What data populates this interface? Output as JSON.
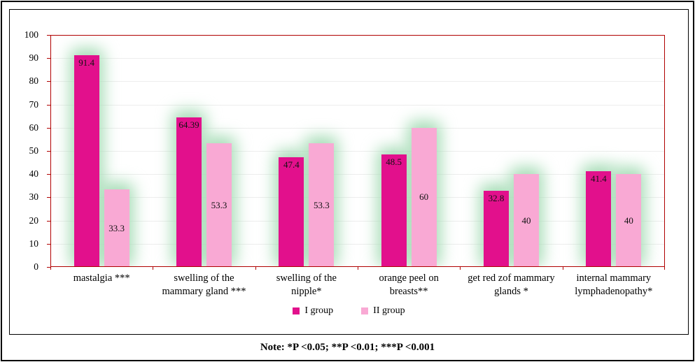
{
  "note": "Note: *P <0.05; **P <0.01; ***P <0.001",
  "chart_data": {
    "type": "bar",
    "title": "",
    "categories": [
      "mastalgia ***",
      "swelling of the mammary gland ***",
      "swelling of the nipple*",
      "orange peel on breasts**",
      "get red zof mammary glands *",
      "internal mammary lymphadenopathy*"
    ],
    "category_lines": [
      [
        "mastalgia ***"
      ],
      [
        "swelling of the",
        "mammary gland ***"
      ],
      [
        "swelling of the",
        "nipple*"
      ],
      [
        "orange peel on",
        "breasts**"
      ],
      [
        "get red zof mammary",
        "glands *"
      ],
      [
        "internal mammary",
        "lymphadenopathy*"
      ]
    ],
    "series": [
      {
        "name": "I group",
        "color": "#E2108C",
        "values": [
          91.4,
          64.39,
          47.4,
          48.5,
          32.8,
          41.4
        ],
        "value_labels": [
          "91.4",
          "64.39",
          "47.4",
          "48.5",
          "32.8",
          "41.4"
        ],
        "label_position": "top"
      },
      {
        "name": "II group",
        "color": "#F9A9D4",
        "values": [
          33.3,
          53.3,
          53.3,
          60,
          40,
          40
        ],
        "value_labels": [
          "33.3",
          "53.3",
          "53.3",
          "60",
          "40",
          "40"
        ],
        "label_position": "center"
      }
    ],
    "ylim": [
      0,
      100
    ],
    "yticks": [
      "0",
      "10",
      "20",
      "30",
      "40",
      "50",
      "60",
      "70",
      "80",
      "90",
      "100"
    ],
    "grid": true,
    "legend_position": "bottom-center",
    "axis_frame_color": "#B00000",
    "glow_color": "#A6DCB6",
    "background": "#FFFFFF"
  }
}
